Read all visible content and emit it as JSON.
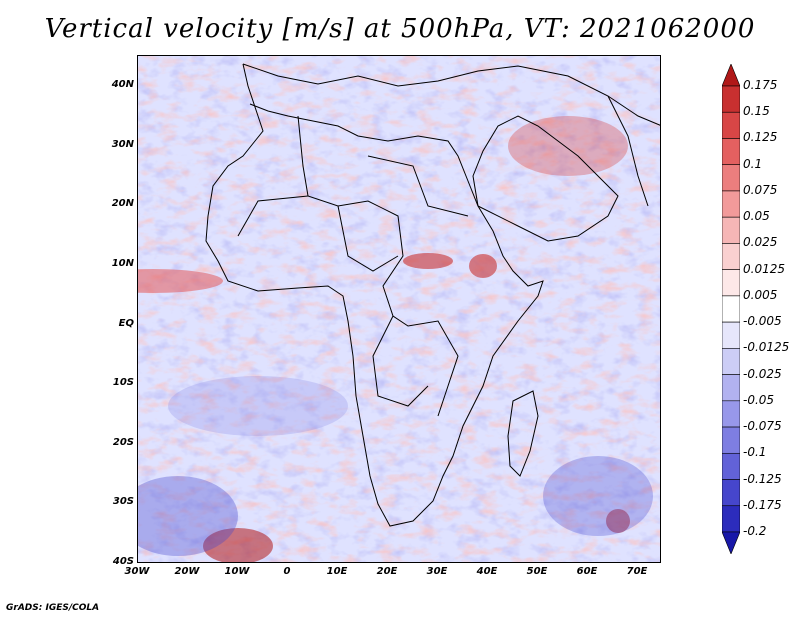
{
  "title": "Vertical velocity [m/s] at 500hPa, VT: 2021062000",
  "footer": "GrADS: IGES/COLA",
  "map": {
    "variable": "Vertical velocity",
    "units": "m/s",
    "level": "500hPa",
    "valid_time": "2021062000",
    "lat_labels": [
      "40N",
      "30N",
      "20N",
      "10N",
      "EQ",
      "10S",
      "20S",
      "30S",
      "40S"
    ],
    "lon_labels": [
      "30W",
      "20W",
      "10W",
      "0",
      "10E",
      "20E",
      "30E",
      "40E",
      "50E",
      "60E",
      "70E"
    ]
  },
  "colorbar": {
    "labels": [
      "0.175",
      "0.15",
      "0.125",
      "0.1",
      "0.075",
      "0.05",
      "0.025",
      "0.0125",
      "0.005",
      "-0.005",
      "-0.0125",
      "-0.025",
      "-0.05",
      "-0.075",
      "-0.1",
      "-0.125",
      "-0.175",
      "-0.2"
    ],
    "colors": [
      "#b01818",
      "#c83030",
      "#d84646",
      "#e46060",
      "#ec7e7e",
      "#f29a9a",
      "#f6b6b6",
      "#fad0d0",
      "#fde8e8",
      "#ffffff",
      "#e6e6fb",
      "#cccdf6",
      "#b2b2f0",
      "#9898ea",
      "#7e7ee2",
      "#6262d8",
      "#4646cc",
      "#2c2cbc",
      "#1818a8"
    ]
  }
}
